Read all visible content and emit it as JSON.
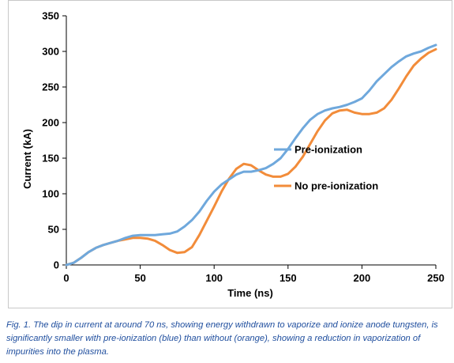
{
  "caption": "Fig. 1. The dip in current at around 70 ns, showing energy withdrawn to vaporize and ionize anode tungsten, is significantly smaller with pre-ionization (blue) than without (orange), showing a reduction in vaporization of impurities into the plasma.",
  "chart_data": {
    "type": "line",
    "title": "",
    "xlabel": "Time (ns)",
    "ylabel": "Current (kA)",
    "xlim": [
      0,
      250
    ],
    "ylim": [
      0,
      350
    ],
    "x_ticks": [
      0,
      50,
      100,
      150,
      200,
      250
    ],
    "y_ticks": [
      0,
      50,
      100,
      150,
      200,
      250,
      300,
      350
    ],
    "grid": false,
    "legend_position": "right",
    "series": [
      {
        "name": "Pre-ionization",
        "color": "#6fa8dc",
        "x": [
          0,
          5,
          10,
          15,
          20,
          25,
          30,
          35,
          40,
          45,
          50,
          55,
          60,
          65,
          70,
          75,
          80,
          85,
          90,
          95,
          100,
          105,
          110,
          115,
          120,
          125,
          130,
          135,
          140,
          145,
          150,
          155,
          160,
          165,
          170,
          175,
          180,
          185,
          190,
          195,
          200,
          205,
          210,
          215,
          220,
          225,
          230,
          235,
          240,
          245,
          250
        ],
        "y": [
          0,
          3,
          10,
          18,
          24,
          28,
          31,
          34,
          38,
          41,
          42,
          42,
          42,
          43,
          44,
          47,
          54,
          63,
          75,
          90,
          103,
          113,
          120,
          127,
          131,
          131,
          133,
          136,
          142,
          150,
          163,
          178,
          192,
          204,
          212,
          217,
          220,
          222,
          225,
          229,
          234,
          245,
          258,
          268,
          278,
          286,
          293,
          297,
          300,
          305,
          309
        ]
      },
      {
        "name": "No pre-ionization",
        "color": "#f28c3a",
        "x": [
          0,
          5,
          10,
          15,
          20,
          25,
          30,
          35,
          40,
          45,
          50,
          55,
          60,
          65,
          70,
          75,
          80,
          85,
          90,
          95,
          100,
          105,
          110,
          115,
          120,
          125,
          130,
          135,
          140,
          145,
          150,
          155,
          160,
          165,
          170,
          175,
          180,
          185,
          190,
          195,
          200,
          205,
          210,
          215,
          220,
          225,
          230,
          235,
          240,
          245,
          250
        ],
        "y": [
          0,
          3,
          10,
          18,
          24,
          28,
          31,
          34,
          36,
          38,
          38,
          37,
          34,
          28,
          21,
          17,
          18,
          25,
          42,
          62,
          82,
          103,
          121,
          135,
          142,
          140,
          133,
          127,
          124,
          124,
          128,
          138,
          152,
          170,
          188,
          203,
          213,
          217,
          218,
          214,
          212,
          212,
          214,
          220,
          232,
          248,
          265,
          280,
          290,
          298,
          303
        ]
      }
    ]
  }
}
